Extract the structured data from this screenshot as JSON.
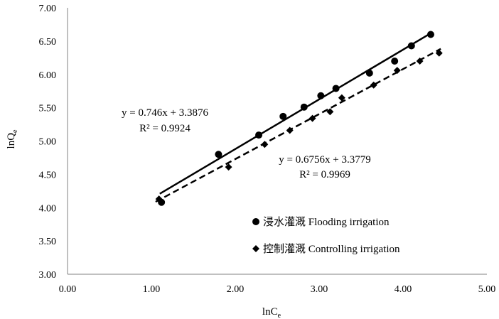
{
  "chart_data": {
    "type": "scatter",
    "xlabel": "lnC",
    "xlabel_sub": "e",
    "ylabel": "lnQ",
    "ylabel_sub": "e",
    "xlim": [
      0,
      5
    ],
    "ylim": [
      3,
      7
    ],
    "x_ticks": [
      "0.00",
      "1.00",
      "2.00",
      "3.00",
      "4.00",
      "5.00"
    ],
    "y_ticks": [
      "3.00",
      "3.50",
      "4.00",
      "4.50",
      "5.00",
      "5.50",
      "6.00",
      "6.50",
      "7.00"
    ],
    "grid": false,
    "legend_position": "center-right",
    "series": [
      {
        "name": "浸水灌溉 Flooding irrigation",
        "marker": "circle",
        "line_style": "solid",
        "color": "#000000",
        "x": [
          1.12,
          1.8,
          2.28,
          2.57,
          2.82,
          3.02,
          3.2,
          3.6,
          3.9,
          4.1,
          4.33
        ],
        "y": [
          4.08,
          4.8,
          5.09,
          5.37,
          5.51,
          5.68,
          5.79,
          6.02,
          6.2,
          6.43,
          6.6
        ],
        "fit_line": {
          "x_range": [
            1.1,
            4.35
          ],
          "slope": 0.746,
          "intercept": 3.3876
        },
        "equation": "y = 0.746x + 3.3876",
        "r2": "R² = 0.9924"
      },
      {
        "name": "控制灌溉 Controlling irrigation",
        "marker": "diamond",
        "line_style": "dashed",
        "color": "#000000",
        "x": [
          1.09,
          1.92,
          2.35,
          2.65,
          2.92,
          3.13,
          3.27,
          3.65,
          3.93,
          4.2,
          4.43
        ],
        "y": [
          4.13,
          4.61,
          4.95,
          5.16,
          5.34,
          5.44,
          5.65,
          5.84,
          6.06,
          6.2,
          6.32
        ],
        "fit_line": {
          "x_range": [
            1.05,
            4.45
          ],
          "slope": 0.6756,
          "intercept": 3.3779
        },
        "equation": "y = 0.6756x + 3.3779",
        "r2": "R² = 0.9969"
      }
    ]
  }
}
